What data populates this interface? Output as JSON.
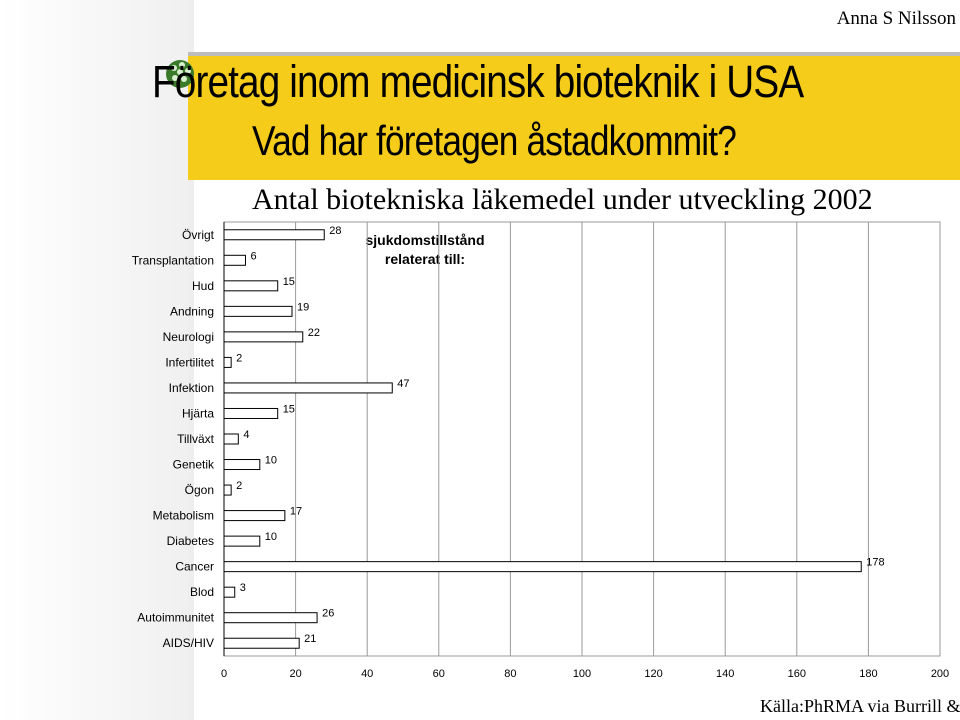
{
  "header": {
    "author": "Anna S Nilsson",
    "title": "Företag inom medicinsk bioteknik i USA",
    "subtitle": "Vad har företagen åstadkommit?"
  },
  "note": {
    "line1": "sjukdomstillstånd",
    "line2": "relaterat till:"
  },
  "source": "Källa:PhRMA via Burrill & Co",
  "colors": {
    "banner": "#f5cc1a",
    "sidebar": "#f0f0f0",
    "bar": "#ffffff",
    "bar_stroke": "#000000",
    "grid": "#9a9a9a"
  },
  "chart_data": {
    "type": "bar",
    "orientation": "horizontal",
    "title": "Antal biotekniska läkemedel under utveckling 2002",
    "categories": [
      "Övrigt",
      "Transplantation",
      "Hud",
      "Andning",
      "Neurologi",
      "Infertilitet",
      "Infektion",
      "Hjärta",
      "Tillväxt",
      "Genetik",
      "Ögon",
      "Metabolism",
      "Diabetes",
      "Cancer",
      "Blod",
      "Autoimmunitet",
      "AIDS/HIV"
    ],
    "values": [
      28,
      6,
      15,
      19,
      22,
      2,
      47,
      15,
      4,
      10,
      2,
      17,
      10,
      178,
      3,
      26,
      21
    ],
    "xlim": [
      0,
      200
    ],
    "xticks": [
      0,
      20,
      40,
      60,
      80,
      100,
      120,
      140,
      160,
      180,
      200
    ],
    "xlabel": "",
    "ylabel": "",
    "grid": "vertical"
  }
}
